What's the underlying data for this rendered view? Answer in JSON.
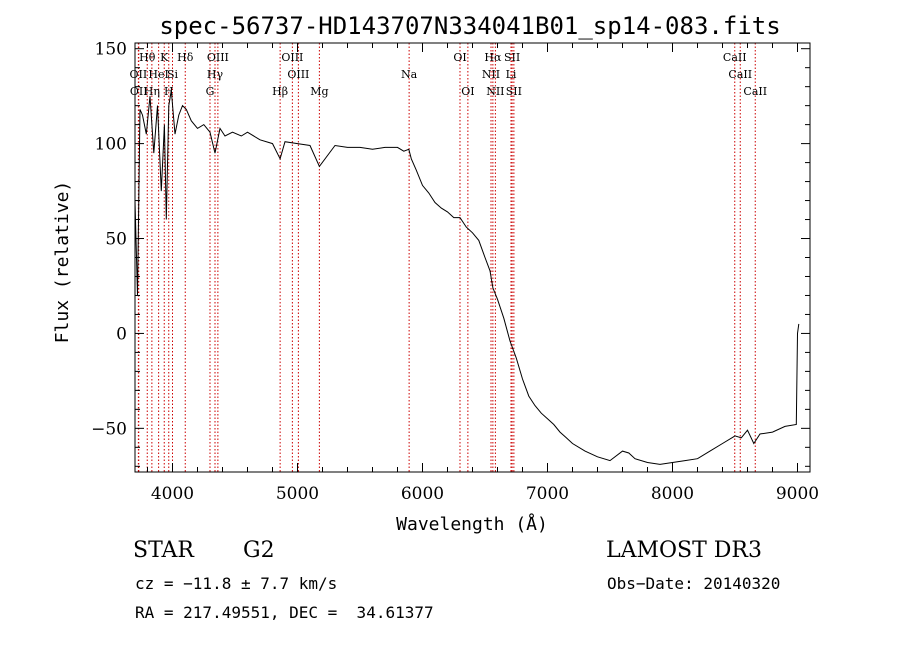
{
  "chart_data": {
    "type": "line",
    "title": "spec-56737-HD143707N334041B01_sp14-083.fits",
    "xlabel": "Wavelength (Å)",
    "ylabel": "Flux (relative)",
    "xlim": [
      3700,
      9100
    ],
    "ylim": [
      -73,
      153
    ],
    "x_ticks": [
      4000,
      5000,
      6000,
      7000,
      8000,
      9000
    ],
    "y_ticks": [
      -50,
      0,
      50,
      100,
      150
    ],
    "x_tick_labels": [
      "4000",
      "5000",
      "6000",
      "7000",
      "8000",
      "9000"
    ],
    "y_tick_labels": [
      "−50",
      "0",
      "50",
      "100",
      "150"
    ],
    "series": [
      {
        "x": [
          3700,
          3720,
          3740,
          3760,
          3790,
          3820,
          3850,
          3880,
          3910,
          3935,
          3950,
          3970,
          3990,
          4020,
          4050,
          4080,
          4110,
          4150,
          4200,
          4250,
          4300,
          4340,
          4380,
          4420,
          4480,
          4550,
          4600,
          4700,
          4800,
          4861,
          4900,
          5000,
          5100,
          5175,
          5300,
          5400,
          5500,
          5600,
          5700,
          5800,
          5850,
          5890,
          5910,
          5950,
          6000,
          6050,
          6100,
          6150,
          6200,
          6250,
          6300,
          6350,
          6400,
          6450,
          6500,
          6540,
          6563,
          6600,
          6650,
          6700,
          6750,
          6800,
          6850,
          6900,
          6950,
          7000,
          7050,
          7100,
          7150,
          7200,
          7300,
          7400,
          7500,
          7600,
          7650,
          7700,
          7800,
          7900,
          8000,
          8100,
          8200,
          8300,
          8400,
          8500,
          8550,
          8600,
          8650,
          8700,
          8800,
          8900,
          8990,
          9000,
          9010
        ],
        "y": [
          70,
          20,
          118,
          115,
          105,
          125,
          95,
          120,
          75,
          110,
          60,
          120,
          128,
          105,
          115,
          120,
          118,
          112,
          108,
          110,
          106,
          95,
          108,
          104,
          106,
          104,
          106,
          102,
          100,
          92,
          101,
          100,
          99,
          88,
          99,
          98,
          98,
          97,
          98,
          98,
          96,
          97,
          92,
          86,
          78,
          74,
          69,
          66,
          64,
          61,
          61,
          56,
          53,
          49,
          40,
          33,
          24,
          18,
          8,
          -4,
          -13,
          -24,
          -33,
          -38,
          -42,
          -45,
          -48,
          -52,
          -55,
          -58,
          -62,
          -65,
          -67,
          -62,
          -63,
          -66,
          -68,
          -69,
          -68,
          -67,
          -66,
          -62,
          -58,
          -54,
          -55,
          -51,
          -58,
          -53,
          -52,
          -49,
          -48,
          0,
          5
        ]
      }
    ],
    "lines": {
      "row1": [
        {
          "label": "Hθ",
          "x": 3798
        },
        {
          "label": "K",
          "x": 3934
        },
        {
          "label": "Hδ",
          "x": 4102
        },
        {
          "label": "OIII",
          "x": 4363
        },
        {
          "label": "OIII",
          "x": 4959
        },
        {
          "label": "OI",
          "x": 6300
        },
        {
          "label": "Hα",
          "x": 6563
        },
        {
          "label": "SII",
          "x": 6717
        },
        {
          "label": "CaII",
          "x": 8498
        }
      ],
      "row2": [
        {
          "label": "OII",
          "x": 3727
        },
        {
          "label": "HeI",
          "x": 3889
        },
        {
          "label": "Si",
          "x": 4000
        },
        {
          "label": "Hγ",
          "x": 4340
        },
        {
          "label": "OIII",
          "x": 5007
        },
        {
          "label": "Na",
          "x": 5893
        },
        {
          "label": "NII",
          "x": 6548
        },
        {
          "label": "Li",
          "x": 6708
        },
        {
          "label": "CaII",
          "x": 8542
        }
      ],
      "row3": [
        {
          "label": "OII",
          "x": 3730
        },
        {
          "label": "Hη",
          "x": 3835
        },
        {
          "label": "H",
          "x": 3970
        },
        {
          "label": "G",
          "x": 4300
        },
        {
          "label": "Hβ",
          "x": 4861
        },
        {
          "label": "Mg",
          "x": 5175
        },
        {
          "label": "OI",
          "x": 6363
        },
        {
          "label": "NII",
          "x": 6583
        },
        {
          "label": "SII",
          "x": 6731
        },
        {
          "label": "CaII",
          "x": 8662
        }
      ]
    },
    "vline_color": "#cc0000",
    "line_color": "#000000",
    "grid": false
  },
  "info": {
    "object_class": "STAR",
    "subclass": "G2",
    "survey": "LAMOST DR3",
    "cz": "cz = −11.8 ± 7.7 km/s",
    "obs_date": "Obs−Date: 20140320",
    "coords": "RA = 217.49551, DEC =  34.61377"
  }
}
